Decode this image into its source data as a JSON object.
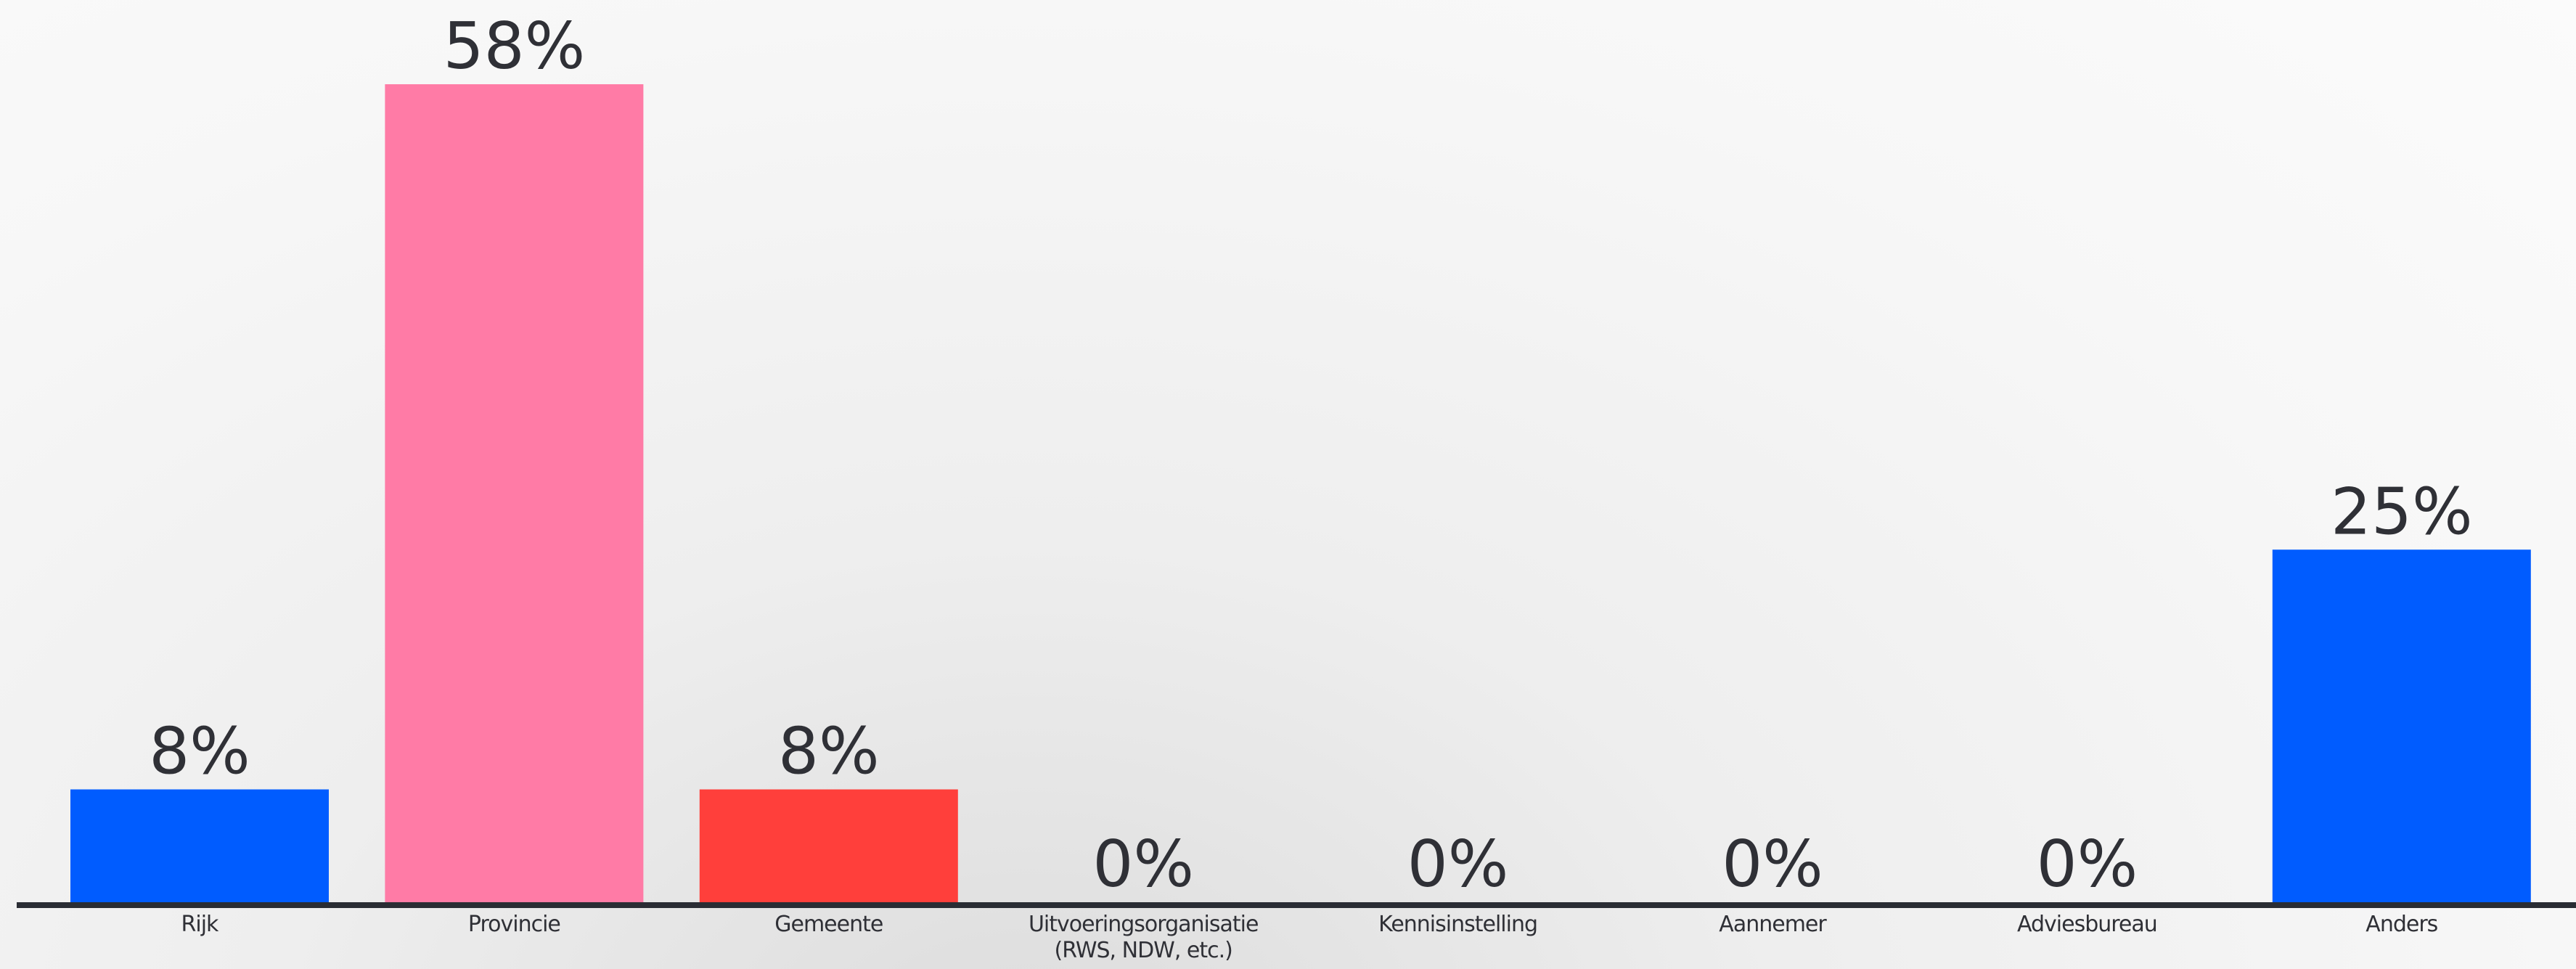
{
  "chart_data": {
    "type": "bar",
    "categories": [
      "Rijk",
      "Provincie",
      "Gemeente",
      "Uitvoeringsorganisatie\n(RWS, NDW, etc.)",
      "Kennisinstelling",
      "Aannemer",
      "Adviesbureau",
      "Anders"
    ],
    "values": [
      8,
      58,
      8,
      0,
      0,
      0,
      0,
      25
    ],
    "value_labels": [
      "8%",
      "58%",
      "8%",
      "0%",
      "0%",
      "0%",
      "0%",
      "25%"
    ],
    "colors": [
      "#005cff",
      "#ff7ba6",
      "#ff3f3b",
      "#005cff",
      "#005cff",
      "#005cff",
      "#005cff",
      "#005cff"
    ]
  }
}
